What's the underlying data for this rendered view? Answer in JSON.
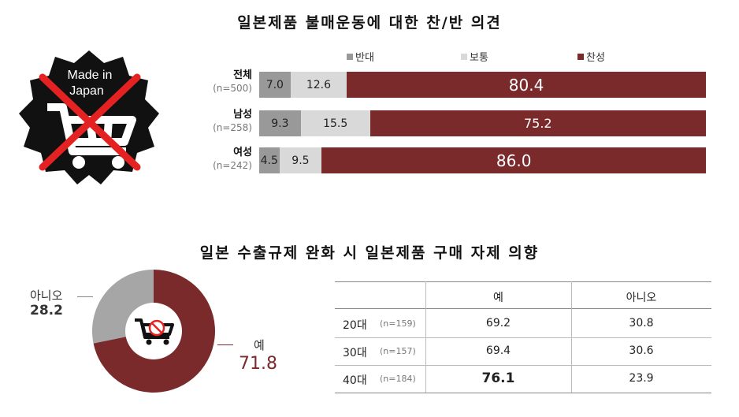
{
  "top": {
    "title": "일본제품 불매운동에 대한 찬/반 의견",
    "badge": {
      "line1": "Made in",
      "line2": "Japan"
    },
    "legend": [
      {
        "label": "반대",
        "color": "#999999"
      },
      {
        "label": "보통",
        "color": "#d9d9d9"
      },
      {
        "label": "찬성",
        "color": "#7b2a2c"
      }
    ]
  },
  "chart_data": [
    {
      "type": "bar",
      "stacked": true,
      "orientation": "horizontal",
      "title": "일본제품 불매운동에 대한 찬/반 의견",
      "categories": [
        {
          "group": "전체",
          "n": "(n=500)"
        },
        {
          "group": "남성",
          "n": "(n=258)"
        },
        {
          "group": "여성",
          "n": "(n=242)"
        }
      ],
      "series": [
        {
          "name": "반대",
          "color": "#999999",
          "values": [
            7.0,
            9.3,
            4.5
          ],
          "labels": [
            "7.0",
            "9.3",
            "4.5"
          ]
        },
        {
          "name": "보통",
          "color": "#d9d9d9",
          "values": [
            12.6,
            15.5,
            9.5
          ],
          "labels": [
            "12.6",
            "15.5",
            "9.5"
          ]
        },
        {
          "name": "찬성",
          "color": "#7b2a2c",
          "values": [
            80.4,
            75.2,
            86.0
          ],
          "labels": [
            "80.4",
            "75.2",
            "86.0"
          ]
        }
      ],
      "legend_position": "top"
    },
    {
      "type": "pie",
      "donut": true,
      "title": "일본 수출규제 완화 시 일본제품 구매 자제 의향",
      "slices": [
        {
          "name": "예",
          "value": 71.8,
          "label": "71.8",
          "color": "#7b2a2c"
        },
        {
          "name": "아니오",
          "value": 28.2,
          "label": "28.2",
          "color": "#a6a6a6"
        }
      ]
    },
    {
      "type": "table",
      "columns": [
        "",
        "예",
        "아니오"
      ],
      "rows": [
        {
          "age": "20대",
          "n": "(n=159)",
          "yes": "69.2",
          "no": "30.8"
        },
        {
          "age": "30대",
          "n": "(n=157)",
          "yes": "69.4",
          "no": "30.6"
        },
        {
          "age": "40대",
          "n": "(n=184)",
          "yes": "76.1",
          "no": "23.9"
        }
      ]
    }
  ],
  "bottom": {
    "title": "일본 수출규제 완화 시 일본제품 구매 자제 의향"
  }
}
